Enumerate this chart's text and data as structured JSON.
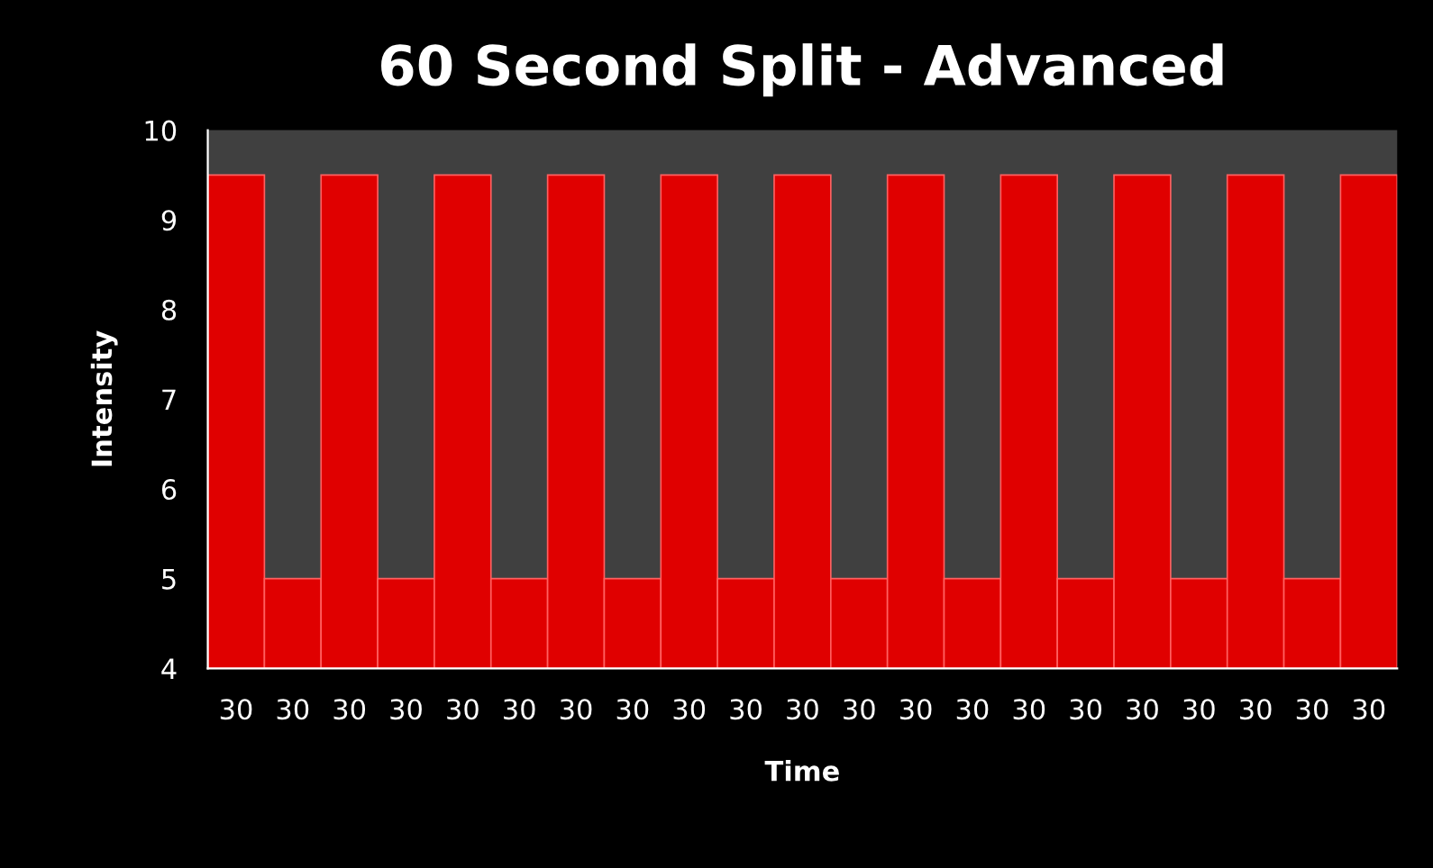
{
  "chart_data": {
    "type": "bar",
    "title": "60 Second Split - Advanced",
    "xlabel": "Time",
    "ylabel": "Intensity",
    "categories": [
      "30",
      "30",
      "30",
      "30",
      "30",
      "30",
      "30",
      "30",
      "30",
      "30",
      "30",
      "30",
      "30",
      "30",
      "30",
      "30",
      "30",
      "30",
      "30",
      "30",
      "30"
    ],
    "values": [
      9.5,
      5,
      9.5,
      5,
      9.5,
      5,
      9.5,
      5,
      9.5,
      5,
      9.5,
      5,
      9.5,
      5,
      9.5,
      5,
      9.5,
      5,
      9.5,
      5,
      9.5
    ],
    "color": "#e00000",
    "ylim": [
      4,
      10
    ],
    "yticks": [
      4,
      5,
      6,
      7,
      8,
      9,
      10
    ],
    "grid": false
  }
}
